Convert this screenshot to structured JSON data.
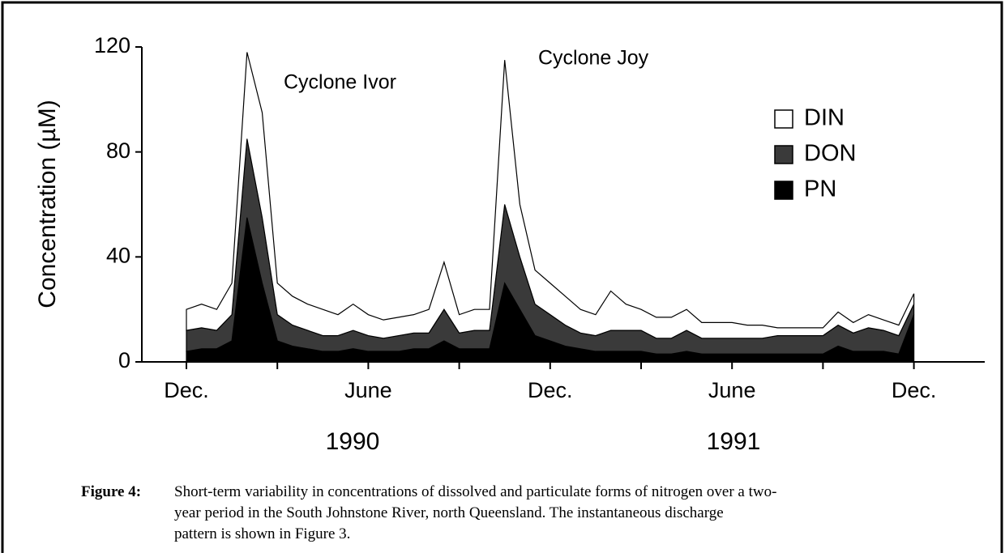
{
  "chart_data": {
    "type": "stacked_area",
    "ylabel": "Concentration (µM)",
    "categories": [
      "Dec.",
      null,
      null,
      null,
      null,
      null,
      null,
      null,
      null,
      null,
      null,
      null,
      "June",
      null,
      null,
      null,
      null,
      null,
      null,
      null,
      null,
      null,
      null,
      null,
      "Dec.",
      null,
      null,
      null,
      null,
      null,
      null,
      null,
      null,
      null,
      null,
      null,
      "June",
      null,
      null,
      null,
      null,
      null,
      null,
      null,
      null,
      null,
      null,
      null,
      "Dec."
    ],
    "years": [
      "1990",
      "1991"
    ],
    "annotations": [
      "Cyclone Ivor",
      "Cyclone Joy"
    ],
    "series": [
      {
        "name": "PN",
        "color": "#000000",
        "values": [
          4,
          5,
          5,
          8,
          55,
          30,
          8,
          6,
          5,
          4,
          4,
          5,
          4,
          4,
          4,
          5,
          5,
          8,
          5,
          5,
          5,
          30,
          20,
          10,
          8,
          6,
          5,
          4,
          4,
          4,
          4,
          3,
          3,
          4,
          3,
          3,
          3,
          3,
          3,
          3,
          3,
          3,
          3,
          6,
          4,
          4,
          4,
          3,
          18
        ]
      },
      {
        "name": "DON",
        "color": "#3a3a3a",
        "values": [
          8,
          8,
          7,
          10,
          30,
          25,
          10,
          8,
          7,
          6,
          6,
          7,
          6,
          5,
          6,
          6,
          6,
          12,
          6,
          7,
          7,
          30,
          20,
          12,
          10,
          8,
          6,
          6,
          8,
          8,
          8,
          6,
          6,
          8,
          6,
          6,
          6,
          6,
          6,
          7,
          7,
          7,
          7,
          8,
          7,
          9,
          8,
          7,
          4
        ]
      },
      {
        "name": "DIN",
        "color": "#ffffff",
        "values": [
          8,
          9,
          8,
          12,
          33,
          40,
          12,
          11,
          10,
          10,
          8,
          10,
          8,
          7,
          7,
          7,
          9,
          18,
          7,
          8,
          8,
          55,
          20,
          13,
          12,
          11,
          9,
          8,
          15,
          10,
          8,
          8,
          8,
          8,
          6,
          6,
          6,
          5,
          5,
          3,
          3,
          3,
          3,
          5,
          4,
          5,
          4,
          4,
          4
        ]
      }
    ],
    "ylim": [
      0,
      120
    ],
    "yticks": [
      0,
      40,
      80,
      120
    ],
    "caption": {
      "label": "Figure 4:",
      "lines": [
        "Short-term variability in concentrations of dissolved and particulate forms of nitrogen over a two-",
        "year period in the South Johnstone River, north Queensland.  The instantaneous discharge",
        "pattern is shown in Figure 3."
      ]
    }
  }
}
